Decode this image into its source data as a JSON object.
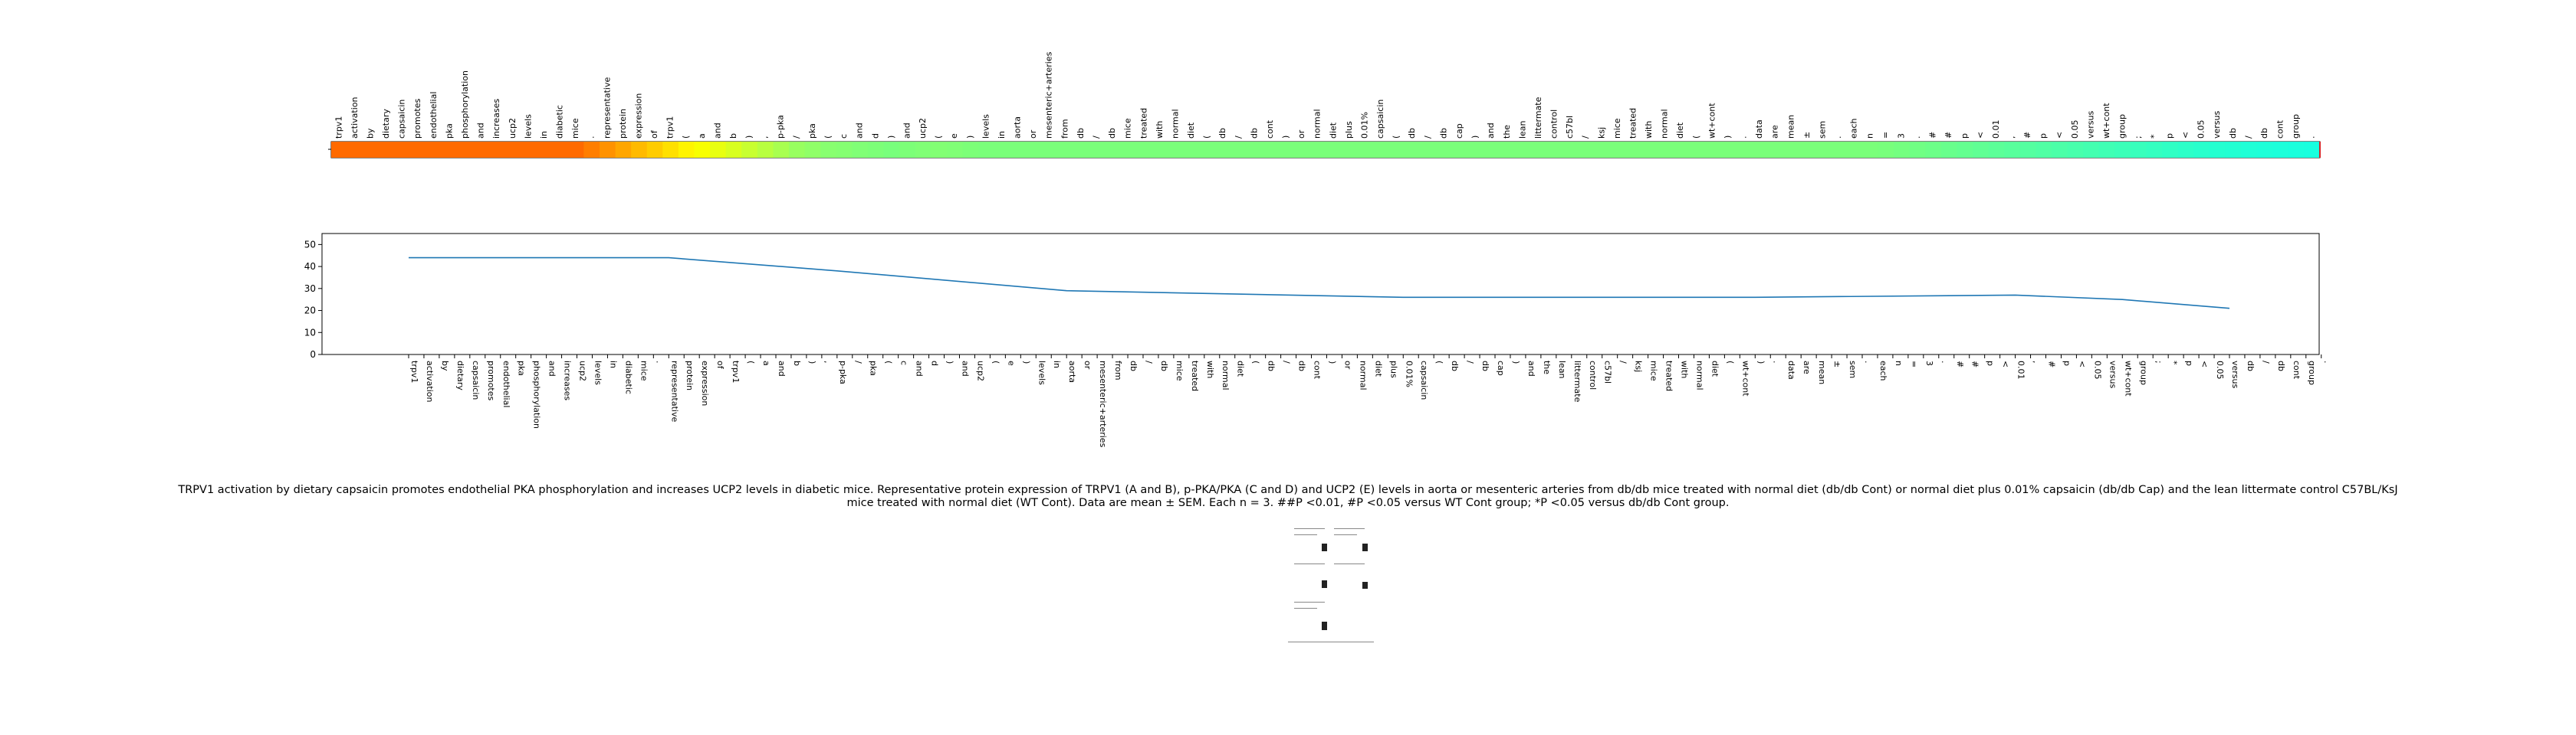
{
  "tokens": [
    "trpv1",
    "activation",
    "by",
    "dietary",
    "capsaicin",
    "promotes",
    "endothelial",
    "pka",
    "phosphorylation",
    "and",
    "increases",
    "ucp2",
    "levels",
    "in",
    "diabetic",
    "mice",
    ".",
    "representative",
    "protein",
    "expression",
    "of",
    "trpv1",
    "(",
    "a",
    "and",
    "b",
    ")",
    ",",
    "p-pka",
    "/",
    "pka",
    "(",
    "c",
    "and",
    "d",
    ")",
    "and",
    "ucp2",
    "(",
    "e",
    ")",
    "levels",
    "in",
    "aorta",
    "or",
    "mesenteric+arteries",
    "from",
    "db",
    "/",
    "db",
    "mice",
    "treated",
    "with",
    "normal",
    "diet",
    "(",
    "db",
    "/",
    "db",
    "cont",
    ")",
    "or",
    "normal",
    "diet",
    "plus",
    "0.01%",
    "capsaicin",
    "(",
    "db",
    "/",
    "db",
    "cap",
    ")",
    "and",
    "the",
    "lean",
    "littermate",
    "control",
    "c57bl",
    "/",
    "ksj",
    "mice",
    "treated",
    "with",
    "normal",
    "diet",
    "(",
    "wt+cont",
    ")",
    ".",
    "data",
    "are",
    "mean",
    "±",
    "sem",
    ".",
    "each",
    "n",
    "=",
    "3",
    ".",
    "#",
    "#",
    "p",
    "<",
    "0.01",
    ",",
    "#",
    "p",
    "<",
    "0.05",
    "versus",
    "wt+cont",
    "group",
    ";",
    "*",
    "p",
    "<",
    "0.05",
    "versus",
    "db",
    "/",
    "db",
    "cont",
    "group",
    "."
  ],
  "colorbar_colors": [
    "#ff6a00",
    "#ff6a00",
    "#ff6a00",
    "#ff6a00",
    "#ff6a00",
    "#ff6a00",
    "#ff6a00",
    "#ff6a00",
    "#ff6a00",
    "#ff6a00",
    "#ff6a00",
    "#ff6a00",
    "#ff6a00",
    "#ff6a00",
    "#ff6a00",
    "#ff6a00",
    "#ff7e00",
    "#ff9200",
    "#ffa600",
    "#ffba00",
    "#ffcc00",
    "#ffe000",
    "#fff400",
    "#f8ff00",
    "#e8ff10",
    "#d8ff20",
    "#c8ff30",
    "#b8ff40",
    "#a8ff50",
    "#98ff60",
    "#90ff68",
    "#88ff70",
    "#85ff72",
    "#80ff76",
    "#7cff78",
    "#78ff7c",
    "#7cff78",
    "#80ff76",
    "#82ff74",
    "#80ff76",
    "#7cff78",
    "#7aff7a",
    "#7aff7a",
    "#7aff7a",
    "#7aff7a",
    "#7aff7a",
    "#7aff7a",
    "#7aff7a",
    "#7aff7a",
    "#7aff7a",
    "#7aff7a",
    "#7aff7a",
    "#7aff7a",
    "#7aff7a",
    "#7aff7a",
    "#7aff7a",
    "#7aff7a",
    "#7aff7a",
    "#7aff7a",
    "#7aff7a",
    "#7aff7a",
    "#7aff7a",
    "#7aff7a",
    "#7aff7a",
    "#7aff7a",
    "#7aff7a",
    "#7aff7a",
    "#7aff7a",
    "#7aff7a",
    "#7aff7a",
    "#7aff7a",
    "#7aff7a",
    "#7aff7a",
    "#7aff7a",
    "#7aff7a",
    "#7aff7a",
    "#7aff7a",
    "#7aff7a",
    "#7aff7a",
    "#7aff7a",
    "#7aff7a",
    "#7aff7a",
    "#7aff7a",
    "#7aff7a",
    "#7aff7a",
    "#7aff7a",
    "#7aff7a",
    "#7aff7a",
    "#7aff7a",
    "#7aff7a",
    "#7aff7a",
    "#7aff7a",
    "#7aff7a",
    "#7aff7a",
    "#7aff7a",
    "#7aff7a",
    "#7aff7a",
    "#7aff7a",
    "#78ff7c",
    "#74ff80",
    "#70ff84",
    "#6cff88",
    "#68ff8c",
    "#64ff90",
    "#60ff94",
    "#5cff98",
    "#58ff9c",
    "#54ffa0",
    "#50ffa4",
    "#4cffa8",
    "#48ffac",
    "#44ffb0",
    "#40ffb4",
    "#3cffb8",
    "#38ffbc",
    "#34ffc0",
    "#30ffc4",
    "#2cffc8",
    "#28ffcc",
    "#24ffd0",
    "#22ffd2",
    "#20ffd6",
    "#1effd8",
    "#1cffda",
    "#1affdc",
    "#18ffde",
    "#16ffe0",
    "#14ffe2",
    "#12ffe4",
    "#10ffe6"
  ],
  "caption": "TRPV1 activation by dietary capsaicin promotes endothelial PKA phosphorylation and increases UCP2 levels in diabetic mice. Representative protein expression of TRPV1 (A and B), p-PKA/PKA (C and D) and UCP2 (E) levels in aorta or mesenteric arteries from db/db mice treated with normal diet (db/db Cont) or normal diet plus 0.01% capsaicin (db/db Cap) and the lean littermate control C57BL/KsJ mice treated with normal diet (WT Cont). Data are mean ± SEM. Each n = 3. ##P <0.01, #P <0.05 versus WT Cont group; *P <0.05 versus db/db Cont group.",
  "chart_data": {
    "type": "line",
    "title": "",
    "xlabel": "",
    "ylabel": "",
    "ylim": [
      0,
      55
    ],
    "yticks": [
      0,
      10,
      20,
      30,
      40,
      50
    ],
    "x_tokens_index": [
      0,
      119
    ],
    "series": [
      {
        "values": [
          [
            0,
            44
          ],
          [
            15,
            44
          ],
          [
            17,
            44
          ],
          [
            28,
            38
          ],
          [
            43,
            29
          ],
          [
            65,
            26
          ],
          [
            88,
            26
          ],
          [
            105,
            27
          ],
          [
            112,
            25
          ],
          [
            119,
            21
          ]
        ]
      }
    ],
    "line_color": "#1f77b4"
  }
}
